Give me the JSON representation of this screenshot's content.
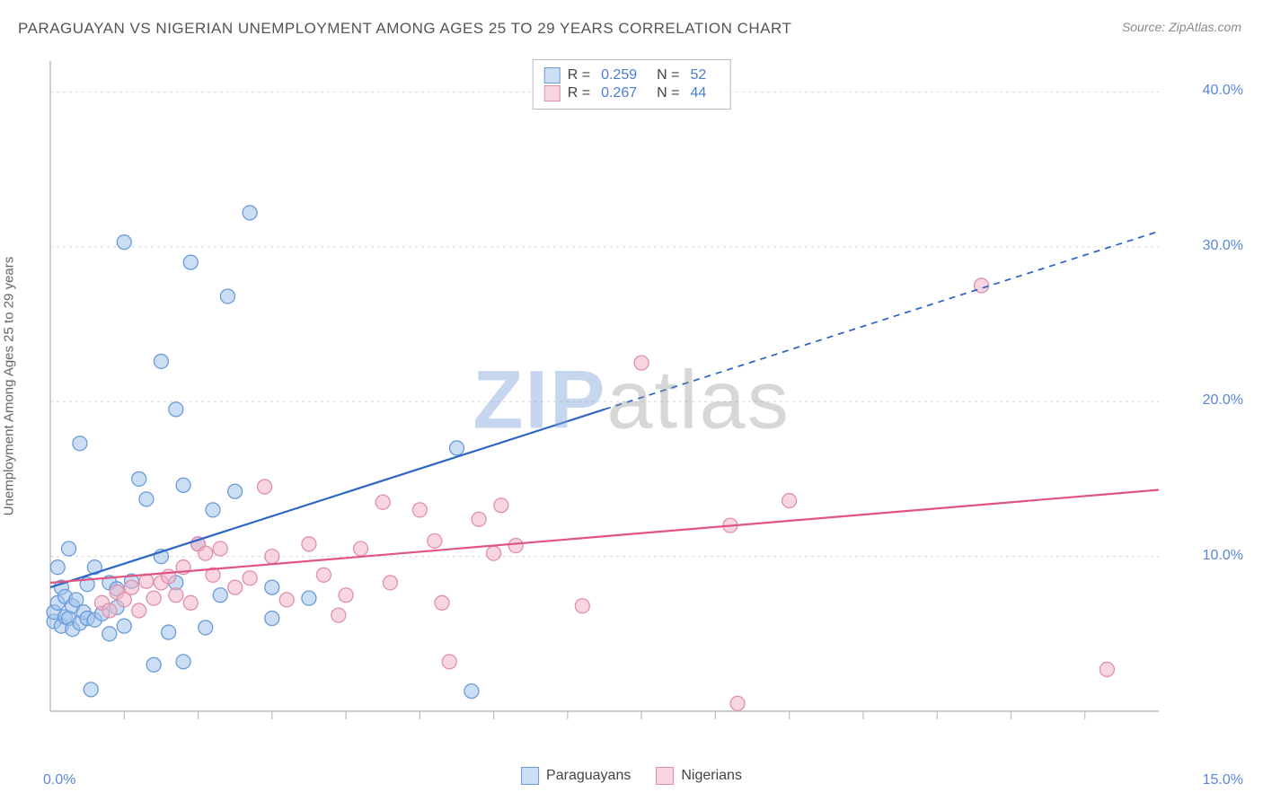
{
  "title": "PARAGUAYAN VS NIGERIAN UNEMPLOYMENT AMONG AGES 25 TO 29 YEARS CORRELATION CHART",
  "source": "Source: ZipAtlas.com",
  "y_label": "Unemployment Among Ages 25 to 29 years",
  "watermark": {
    "part1": "ZIP",
    "part2": "atlas"
  },
  "chart": {
    "type": "scatter",
    "xlim": [
      0,
      15
    ],
    "ylim": [
      0,
      42
    ],
    "x_ticks_minor": [
      1,
      2,
      3,
      4,
      5,
      6,
      7,
      8,
      9,
      10,
      11,
      12,
      13,
      14
    ],
    "x_min_label": "0.0%",
    "x_max_label": "15.0%",
    "y_grid": [
      {
        "value": 10,
        "label": "10.0%"
      },
      {
        "value": 20,
        "label": "20.0%"
      },
      {
        "value": 30,
        "label": "30.0%"
      },
      {
        "value": 40,
        "label": "40.0%"
      }
    ],
    "background_color": "#ffffff",
    "grid_color": "#d8d8d8",
    "axis_color": "#bcbcbc",
    "marker_radius": 8,
    "marker_stroke_width": 1.3,
    "line_width": 2.2,
    "series": [
      {
        "name": "Paraguayans",
        "fill_color": "rgba(160,195,235,0.55)",
        "stroke_color": "#6a9bd8",
        "line_color": "#2d66c4",
        "R": "0.259",
        "N": "52",
        "trend": {
          "start": [
            0.0,
            8.0
          ],
          "solid_end": [
            7.5,
            19.5
          ],
          "dash_end": [
            15.0,
            31.0
          ]
        },
        "points": [
          [
            0.05,
            5.8
          ],
          [
            0.05,
            6.4
          ],
          [
            0.1,
            7.0
          ],
          [
            0.1,
            9.3
          ],
          [
            0.15,
            5.5
          ],
          [
            0.15,
            8.0
          ],
          [
            0.2,
            6.1
          ],
          [
            0.2,
            7.4
          ],
          [
            0.25,
            6.0
          ],
          [
            0.25,
            10.5
          ],
          [
            0.3,
            5.3
          ],
          [
            0.3,
            6.8
          ],
          [
            0.35,
            7.2
          ],
          [
            0.4,
            5.7
          ],
          [
            0.4,
            17.3
          ],
          [
            0.45,
            6.4
          ],
          [
            0.5,
            6.0
          ],
          [
            0.5,
            8.2
          ],
          [
            0.55,
            1.4
          ],
          [
            0.6,
            5.9
          ],
          [
            0.6,
            9.3
          ],
          [
            0.7,
            6.3
          ],
          [
            0.8,
            5.0
          ],
          [
            0.8,
            8.3
          ],
          [
            0.9,
            6.7
          ],
          [
            0.9,
            7.9
          ],
          [
            1.0,
            5.5
          ],
          [
            1.0,
            30.3
          ],
          [
            1.1,
            8.4
          ],
          [
            1.2,
            15.0
          ],
          [
            1.3,
            13.7
          ],
          [
            1.4,
            3.0
          ],
          [
            1.5,
            22.6
          ],
          [
            1.5,
            10.0
          ],
          [
            1.6,
            5.1
          ],
          [
            1.7,
            19.5
          ],
          [
            1.7,
            8.3
          ],
          [
            1.8,
            14.6
          ],
          [
            1.8,
            3.2
          ],
          [
            1.9,
            29.0
          ],
          [
            2.0,
            10.8
          ],
          [
            2.1,
            5.4
          ],
          [
            2.2,
            13.0
          ],
          [
            2.3,
            7.5
          ],
          [
            2.4,
            26.8
          ],
          [
            2.5,
            14.2
          ],
          [
            2.7,
            32.2
          ],
          [
            3.0,
            8.0
          ],
          [
            3.0,
            6.0
          ],
          [
            3.5,
            7.3
          ],
          [
            5.5,
            17.0
          ],
          [
            5.7,
            1.3
          ]
        ]
      },
      {
        "name": "Nigerians",
        "fill_color": "rgba(240,180,200,0.55)",
        "stroke_color": "#e08fab",
        "line_color": "#e0557f",
        "R": "0.267",
        "N": "44",
        "trend": {
          "start": [
            0.0,
            8.3
          ],
          "solid_end": [
            15.0,
            14.3
          ],
          "dash_end": null
        },
        "points": [
          [
            0.7,
            7.0
          ],
          [
            0.8,
            6.5
          ],
          [
            0.9,
            7.7
          ],
          [
            1.0,
            7.2
          ],
          [
            1.1,
            8.0
          ],
          [
            1.2,
            6.5
          ],
          [
            1.3,
            8.4
          ],
          [
            1.4,
            7.3
          ],
          [
            1.5,
            8.3
          ],
          [
            1.6,
            8.7
          ],
          [
            1.7,
            7.5
          ],
          [
            1.8,
            9.3
          ],
          [
            1.9,
            7.0
          ],
          [
            2.0,
            10.8
          ],
          [
            2.1,
            10.2
          ],
          [
            2.2,
            8.8
          ],
          [
            2.3,
            10.5
          ],
          [
            2.5,
            8.0
          ],
          [
            2.7,
            8.6
          ],
          [
            2.9,
            14.5
          ],
          [
            3.0,
            10.0
          ],
          [
            3.2,
            7.2
          ],
          [
            3.5,
            10.8
          ],
          [
            3.7,
            8.8
          ],
          [
            3.9,
            6.2
          ],
          [
            4.0,
            7.5
          ],
          [
            4.2,
            10.5
          ],
          [
            4.5,
            13.5
          ],
          [
            4.6,
            8.3
          ],
          [
            5.0,
            13.0
          ],
          [
            5.2,
            11.0
          ],
          [
            5.3,
            7.0
          ],
          [
            5.4,
            3.2
          ],
          [
            5.8,
            12.4
          ],
          [
            6.0,
            10.2
          ],
          [
            6.1,
            13.3
          ],
          [
            6.3,
            10.7
          ],
          [
            7.2,
            6.8
          ],
          [
            8.0,
            22.5
          ],
          [
            9.2,
            12.0
          ],
          [
            9.3,
            0.5
          ],
          [
            10.0,
            13.6
          ],
          [
            12.6,
            27.5
          ],
          [
            14.3,
            2.7
          ]
        ]
      }
    ],
    "legend_top_labels": {
      "R": "R =",
      "N": "N ="
    },
    "legend_value_color": "#4a7ed0"
  }
}
